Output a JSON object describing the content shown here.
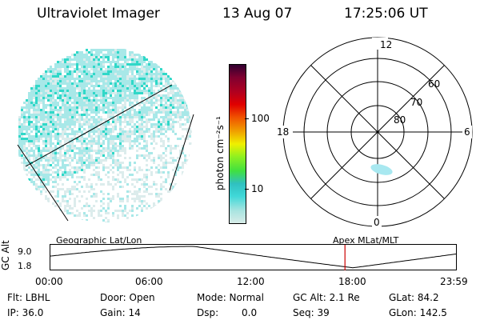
{
  "header": {
    "title": "Ultraviolet Imager",
    "date": "13 Aug 07",
    "time": "17:25:06 UT"
  },
  "colorbar": {
    "unit_label": "photon cm⁻²s⁻¹",
    "ticks": [
      "100",
      "10"
    ],
    "colors": [
      "#d8ece8",
      "#a8e4e0",
      "#40d8d8",
      "#30c0c0",
      "#40e040",
      "#90f020",
      "#f0f000",
      "#f0a000",
      "#f05000",
      "#e00000",
      "#b00020",
      "#800030",
      "#300030"
    ]
  },
  "polar_plot": {
    "hour_labels": [
      "12",
      "18",
      "6",
      "0"
    ],
    "lat_labels": [
      "60",
      "70",
      "80"
    ],
    "aurora_color": "#a8e8f0"
  },
  "timeline": {
    "axis_label": "GC Alt",
    "y_ticks": [
      "9.0",
      "1.8"
    ],
    "left_caption": "Geographic Lat/Lon",
    "right_caption": "Apex MLat/MLT",
    "x_ticks": [
      "00:00",
      "06:00",
      "12:00",
      "18:00",
      "23:59"
    ],
    "marker_color": "#cc0000"
  },
  "status": {
    "flt": "Flt: LBHL",
    "ip": "IP: 36.0",
    "door": "Door: Open",
    "gain": "Gain: 14",
    "mode": "Mode: Normal",
    "dsp": "Dsp:",
    "dsp_value": "0.0",
    "gc_alt": "GC Alt: 2.1 Re",
    "seq": "Seq: 39",
    "glat": "GLat: 84.2",
    "glon": "GLon: 142.5"
  },
  "image_colors": {
    "bright": "#30d8c8",
    "mid": "#a8e8e8",
    "dim": "#dcecec"
  }
}
